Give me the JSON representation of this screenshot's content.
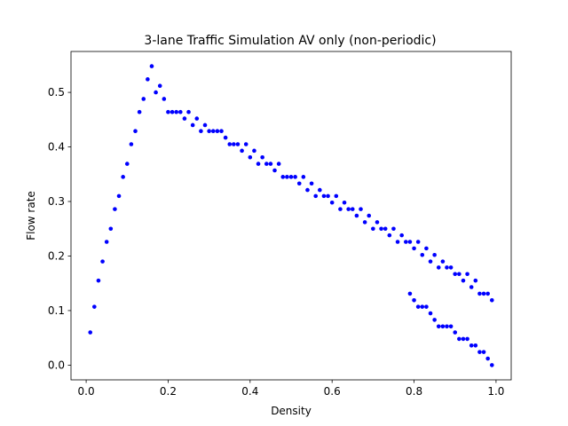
{
  "chart_data": {
    "type": "scatter",
    "title": "3-lane Traffic Simulation AV only (non-periodic)",
    "xlabel": "Density",
    "ylabel": "Flow rate",
    "xlim": [
      -0.037,
      1.037
    ],
    "ylim": [
      -0.027,
      0.575
    ],
    "xticks": [
      "0.0",
      "0.2",
      "0.4",
      "0.6",
      "0.8",
      "1.0"
    ],
    "yticks": [
      "0.0",
      "0.1",
      "0.2",
      "0.3",
      "0.4",
      "0.5"
    ],
    "grid": false,
    "marker_color": "#0000ff",
    "series": [
      {
        "x": [
          0.01,
          0.02,
          0.03,
          0.04,
          0.05,
          0.06,
          0.07,
          0.08,
          0.09,
          0.1,
          0.11,
          0.12,
          0.13,
          0.14,
          0.15,
          0.16,
          0.17,
          0.18,
          0.19,
          0.2,
          0.21,
          0.22,
          0.23,
          0.24,
          0.25,
          0.26,
          0.27,
          0.28,
          0.29,
          0.3,
          0.31,
          0.32,
          0.33,
          0.34,
          0.35,
          0.36,
          0.37,
          0.38,
          0.39,
          0.4,
          0.41,
          0.42,
          0.43,
          0.44,
          0.45,
          0.46,
          0.47,
          0.48,
          0.49,
          0.5,
          0.51,
          0.52,
          0.53,
          0.54,
          0.55,
          0.56,
          0.57,
          0.58,
          0.59,
          0.6,
          0.61,
          0.62,
          0.63,
          0.64,
          0.65,
          0.66,
          0.67,
          0.68,
          0.69,
          0.7,
          0.71,
          0.72,
          0.73,
          0.74,
          0.75,
          0.76,
          0.77,
          0.78,
          0.79,
          0.8,
          0.81,
          0.82,
          0.83,
          0.84,
          0.85,
          0.86,
          0.87,
          0.88,
          0.89,
          0.9,
          0.91,
          0.92,
          0.93,
          0.94,
          0.95,
          0.96,
          0.97,
          0.98,
          0.99
        ],
        "y": [
          0.06,
          0.107,
          0.155,
          0.19,
          0.226,
          0.25,
          0.286,
          0.31,
          0.345,
          0.369,
          0.405,
          0.429,
          0.464,
          0.488,
          0.524,
          0.548,
          0.5,
          0.512,
          0.488,
          0.464,
          0.464,
          0.464,
          0.464,
          0.452,
          0.464,
          0.44,
          0.452,
          0.429,
          0.44,
          0.429,
          0.429,
          0.429,
          0.429,
          0.417,
          0.405,
          0.405,
          0.405,
          0.393,
          0.405,
          0.381,
          0.393,
          0.369,
          0.381,
          0.369,
          0.369,
          0.357,
          0.369,
          0.345,
          0.345,
          0.345,
          0.345,
          0.333,
          0.345,
          0.321,
          0.333,
          0.31,
          0.321,
          0.31,
          0.31,
          0.298,
          0.31,
          0.286,
          0.298,
          0.286,
          0.286,
          0.274,
          0.286,
          0.262,
          0.274,
          0.25,
          0.262,
          0.25,
          0.25,
          0.238,
          0.25,
          0.226,
          0.238,
          0.226,
          0.226,
          0.214,
          0.226,
          0.202,
          0.214,
          0.19,
          0.202,
          0.179,
          0.19,
          0.179,
          0.179,
          0.167,
          0.167,
          0.155,
          0.167,
          0.143,
          0.155,
          0.131,
          0.131,
          0.131,
          0.119
        ],
        "x2": [
          0.79,
          0.8,
          0.81,
          0.82,
          0.83,
          0.84,
          0.85,
          0.86,
          0.87,
          0.88,
          0.89,
          0.9,
          0.91,
          0.92,
          0.93,
          0.94,
          0.95,
          0.96,
          0.97,
          0.98,
          0.99
        ],
        "y2": [
          0.131,
          0.119,
          0.107,
          0.107,
          0.107,
          0.095,
          0.083,
          0.071,
          0.071,
          0.071,
          0.071,
          0.06,
          0.048,
          0.048,
          0.048,
          0.036,
          0.036,
          0.024,
          0.024,
          0.012,
          0.0
        ]
      }
    ]
  }
}
